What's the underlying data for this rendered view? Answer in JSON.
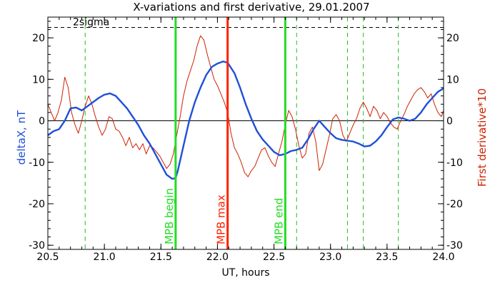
{
  "chart_data": {
    "type": "line",
    "title": "X-variations and first derivative, 29.01.2007",
    "xlabel": "UT, hours",
    "ylabel_left": "deltaX, nT",
    "ylabel_right": "First derivative*10",
    "xlim": [
      20.5,
      24.0
    ],
    "ylim": [
      -31,
      25
    ],
    "x_ticks": [
      "20.5",
      "21.0",
      "21.5",
      "22.0",
      "22.5",
      "23.0",
      "23.5",
      "24.0"
    ],
    "y_ticks": [
      "-30",
      "-20",
      "-10",
      "0",
      "10",
      "20"
    ],
    "threshold": {
      "label": "2sigma",
      "value": 22.5,
      "color": "#000000"
    },
    "markers": [
      {
        "label": "MPB begin",
        "x": 21.63,
        "color": "#22dd22"
      },
      {
        "label": "MPB max",
        "x": 22.09,
        "color": "#ff2200"
      },
      {
        "label": "MPB end",
        "x": 22.6,
        "color": "#22dd22"
      }
    ],
    "dashed_lines": {
      "color": "#22bb22",
      "x": [
        20.83,
        22.7,
        23.15,
        23.29,
        23.6
      ]
    },
    "series": [
      {
        "name": "deltaX, nT",
        "color": "#1f4fd8",
        "x": [
          20.5,
          20.55,
          20.6,
          20.65,
          20.7,
          20.75,
          20.8,
          20.85,
          20.9,
          20.95,
          21.0,
          21.05,
          21.1,
          21.15,
          21.2,
          21.25,
          21.3,
          21.35,
          21.4,
          21.45,
          21.5,
          21.55,
          21.6,
          21.63,
          21.65,
          21.7,
          21.75,
          21.8,
          21.85,
          21.9,
          21.95,
          22.0,
          22.05,
          22.09,
          22.15,
          22.2,
          22.25,
          22.3,
          22.35,
          22.4,
          22.45,
          22.5,
          22.55,
          22.6,
          22.65,
          22.7,
          22.75,
          22.8,
          22.85,
          22.9,
          22.95,
          23.0,
          23.05,
          23.1,
          23.15,
          23.2,
          23.25,
          23.3,
          23.35,
          23.4,
          23.45,
          23.5,
          23.55,
          23.6,
          23.65,
          23.7,
          23.75,
          23.8,
          23.85,
          23.9,
          23.95,
          24.0
        ],
        "y": [
          -3.5,
          -2.5,
          -2.0,
          0.0,
          3.0,
          3.2,
          2.5,
          3.5,
          4.5,
          5.5,
          6.3,
          6.6,
          6.0,
          4.5,
          3.0,
          1.0,
          -1.0,
          -3.5,
          -5.5,
          -8.0,
          -10.5,
          -13.0,
          -14.0,
          -13.8,
          -12.0,
          -6.0,
          0.0,
          4.5,
          8.0,
          11.0,
          13.0,
          13.8,
          14.3,
          14.0,
          11.5,
          8.0,
          4.0,
          0.5,
          -2.5,
          -4.5,
          -6.0,
          -7.5,
          -8.3,
          -8.0,
          -7.3,
          -7.0,
          -6.5,
          -4.5,
          -2.0,
          0.0,
          -1.5,
          -3.0,
          -4.2,
          -4.6,
          -4.8,
          -5.0,
          -5.5,
          -6.2,
          -6.0,
          -5.0,
          -3.5,
          -1.5,
          0.3,
          0.8,
          0.5,
          0.0,
          0.5,
          2.0,
          4.0,
          5.5,
          7.0,
          7.8
        ]
      },
      {
        "name": "First derivative*10",
        "color": "#cc2200",
        "x": [
          20.5,
          20.53,
          20.56,
          20.59,
          20.62,
          20.65,
          20.68,
          20.71,
          20.74,
          20.77,
          20.8,
          20.83,
          20.86,
          20.89,
          20.92,
          20.95,
          20.98,
          21.01,
          21.04,
          21.07,
          21.1,
          21.13,
          21.16,
          21.19,
          21.22,
          21.25,
          21.28,
          21.31,
          21.34,
          21.37,
          21.4,
          21.43,
          21.46,
          21.49,
          21.52,
          21.55,
          21.58,
          21.61,
          21.64,
          21.67,
          21.7,
          21.73,
          21.76,
          21.79,
          21.82,
          21.85,
          21.88,
          21.91,
          21.94,
          21.97,
          22.0,
          22.03,
          22.06,
          22.09,
          22.12,
          22.15,
          22.18,
          22.21,
          22.24,
          22.27,
          22.3,
          22.33,
          22.36,
          22.39,
          22.42,
          22.45,
          22.48,
          22.51,
          22.54,
          22.57,
          22.6,
          22.63,
          22.66,
          22.69,
          22.72,
          22.75,
          22.78,
          22.81,
          22.84,
          22.87,
          22.9,
          22.93,
          22.96,
          22.99,
          23.02,
          23.05,
          23.08,
          23.11,
          23.14,
          23.17,
          23.2,
          23.23,
          23.26,
          23.29,
          23.32,
          23.35,
          23.38,
          23.41,
          23.44,
          23.47,
          23.5,
          23.53,
          23.56,
          23.59,
          23.62,
          23.65,
          23.68,
          23.71,
          23.74,
          23.77,
          23.8,
          23.83,
          23.86,
          23.89,
          23.92,
          23.95,
          23.98,
          24.0
        ],
        "y": [
          4.0,
          2.0,
          0.0,
          2.0,
          5.0,
          10.5,
          8.0,
          2.0,
          -1.0,
          -3.0,
          0.0,
          3.5,
          6.0,
          4.0,
          1.0,
          -1.5,
          -3.5,
          -2.0,
          1.0,
          0.5,
          -2.0,
          -2.5,
          -4.0,
          -6.0,
          -4.0,
          -6.5,
          -5.5,
          -7.0,
          -5.5,
          -8.0,
          -6.0,
          -6.5,
          -7.5,
          -8.5,
          -10.0,
          -11.5,
          -10.5,
          -8.0,
          -3.5,
          1.0,
          6.0,
          9.5,
          12.0,
          14.5,
          18.0,
          20.5,
          19.5,
          16.0,
          13.0,
          10.0,
          8.5,
          6.5,
          4.5,
          2.0,
          -3.0,
          -6.5,
          -8.0,
          -10.0,
          -12.5,
          -13.5,
          -12.0,
          -11.0,
          -9.0,
          -7.0,
          -6.5,
          -8.5,
          -10.0,
          -11.0,
          -8.0,
          -5.0,
          -1.0,
          2.5,
          1.0,
          -2.0,
          -6.0,
          -9.0,
          -8.0,
          -3.0,
          -1.5,
          -5.0,
          -12.0,
          -10.5,
          -7.0,
          -3.5,
          0.5,
          1.5,
          0.0,
          -3.5,
          -5.0,
          -3.0,
          -1.0,
          0.5,
          3.0,
          4.5,
          3.0,
          1.0,
          3.5,
          2.5,
          0.5,
          2.0,
          1.0,
          -0.5,
          -1.5,
          -2.0,
          0.0,
          1.5,
          3.5,
          5.0,
          6.5,
          7.5,
          8.0,
          7.0,
          5.5,
          6.5,
          4.0,
          2.0,
          1.0,
          2.5
        ]
      }
    ]
  }
}
